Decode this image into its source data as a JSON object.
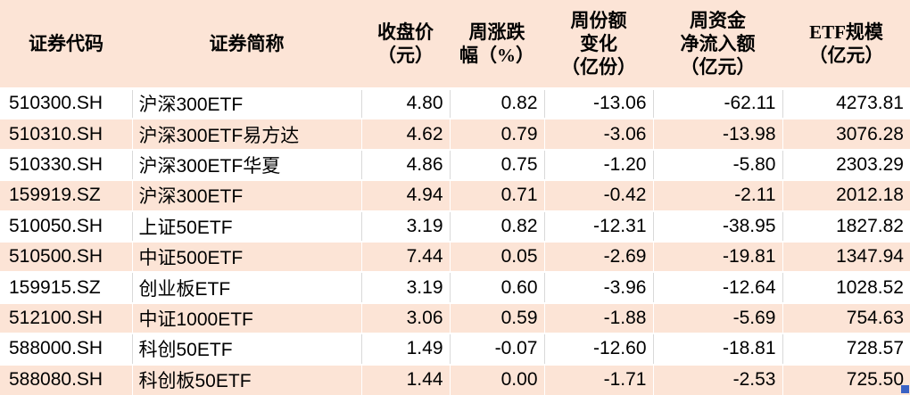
{
  "chart_data": {
    "type": "table",
    "columns": [
      "证券代码",
      "证券简称",
      "收盘价（元）",
      "周涨跌幅（%）",
      "周份额变化（亿份）",
      "周资金净流入额（亿元）",
      "ETF规模（亿元）"
    ],
    "header_lines": [
      [
        "证券代码"
      ],
      [
        "证券简称"
      ],
      [
        "收盘价",
        "（元）"
      ],
      [
        "周涨跌",
        "幅（%）"
      ],
      [
        "周份额",
        "变化",
        "（亿份）"
      ],
      [
        "周资金",
        "净流入额",
        "（亿元）"
      ],
      [
        "ETF规模",
        "（亿元）"
      ]
    ],
    "rows": [
      [
        "510300.SH",
        "沪深300ETF",
        "4.80",
        "0.82",
        "-13.06",
        "-62.11",
        "4273.81"
      ],
      [
        "510310.SH",
        "沪深300ETF易方达",
        "4.62",
        "0.79",
        "-3.06",
        "-13.98",
        "3076.28"
      ],
      [
        "510330.SH",
        "沪深300ETF华夏",
        "4.86",
        "0.75",
        "-1.20",
        "-5.80",
        "2303.29"
      ],
      [
        "159919.SZ",
        "沪深300ETF",
        "4.94",
        "0.71",
        "-0.42",
        "-2.11",
        "2012.18"
      ],
      [
        "510050.SH",
        "上证50ETF",
        "3.19",
        "0.82",
        "-12.31",
        "-38.95",
        "1827.82"
      ],
      [
        "510500.SH",
        "中证500ETF",
        "7.44",
        "0.05",
        "-2.69",
        "-19.81",
        "1347.94"
      ],
      [
        "159915.SZ",
        "创业板ETF",
        "3.19",
        "0.60",
        "-3.96",
        "-12.64",
        "1028.52"
      ],
      [
        "512100.SH",
        "中证1000ETF",
        "3.06",
        "0.59",
        "-1.88",
        "-5.69",
        "754.63"
      ],
      [
        "588000.SH",
        "科创50ETF",
        "1.49",
        "-0.07",
        "-12.60",
        "-18.81",
        "728.57"
      ],
      [
        "588080.SH",
        "科创板50ETF",
        "1.44",
        "0.00",
        "-1.71",
        "-2.53",
        "725.50"
      ]
    ],
    "layout": {
      "header_bg": "#fce4d6",
      "row_bg_white": "#ffffff",
      "row_bg_alt": "#fce4d6",
      "grid_line": "#d9d9d9",
      "row_separator": "#ffffff",
      "text_color": "#000000",
      "fill_handle_color": "#3a62c4",
      "alternating_rows": true
    }
  }
}
